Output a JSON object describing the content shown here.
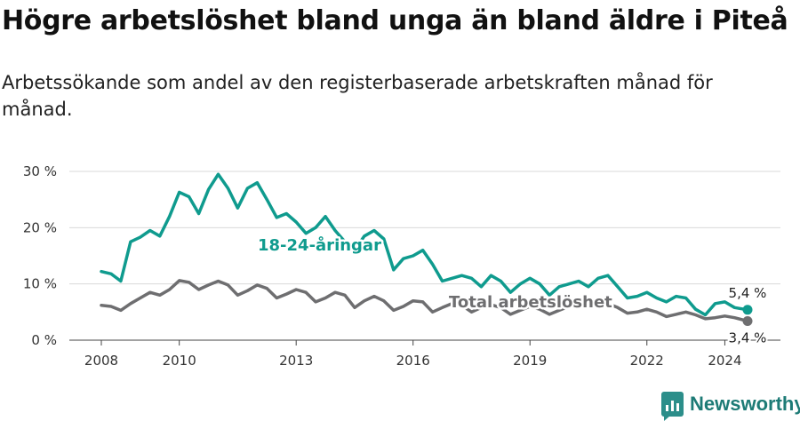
{
  "title": "Högre arbetslöshet bland unga än bland äldre i Piteå",
  "subtitle": "Arbetssökande som andel av den registerbaserade arbetskraften månad för månad.",
  "brand": {
    "name": "Newsworthy"
  },
  "colors": {
    "youth": "#0f9b8e",
    "total": "#6e6e70",
    "grid": "#d9d9d9"
  },
  "chart_data": {
    "type": "line",
    "title": "Högre arbetslöshet bland unga än bland äldre i Piteå",
    "subtitle": "Arbetssökande som andel av den registerbaserade arbetskraften månad för månad.",
    "xlabel": "",
    "ylabel": "",
    "x_ticks": [
      "2008",
      "2010",
      "2013",
      "2016",
      "2019",
      "2022",
      "2024"
    ],
    "y_ticks": [
      "0 %",
      "10 %",
      "20 %",
      "30 %"
    ],
    "ylim": [
      0,
      30
    ],
    "xlim": [
      "2008-01",
      "2024-08"
    ],
    "grid": "horizontal",
    "legend": "inline labels",
    "series": [
      {
        "name": "18-24-åringar",
        "end_label": "5,4 %",
        "points": [
          [
            "2008-01",
            12.2
          ],
          [
            "2008-04",
            11.8
          ],
          [
            "2008-07",
            10.5
          ],
          [
            "2008-10",
            17.5
          ],
          [
            "2009-01",
            18.3
          ],
          [
            "2009-04",
            19.5
          ],
          [
            "2009-07",
            18.5
          ],
          [
            "2009-10",
            22.0
          ],
          [
            "2010-01",
            26.3
          ],
          [
            "2010-04",
            25.5
          ],
          [
            "2010-07",
            22.5
          ],
          [
            "2010-10",
            26.8
          ],
          [
            "2011-01",
            29.5
          ],
          [
            "2011-04",
            27.0
          ],
          [
            "2011-07",
            23.5
          ],
          [
            "2011-10",
            27.0
          ],
          [
            "2012-01",
            28.0
          ],
          [
            "2012-04",
            25.0
          ],
          [
            "2012-07",
            21.8
          ],
          [
            "2012-10",
            22.5
          ],
          [
            "2013-01",
            21.0
          ],
          [
            "2013-04",
            19.0
          ],
          [
            "2013-07",
            20.0
          ],
          [
            "2013-10",
            22.0
          ],
          [
            "2014-01",
            19.5
          ],
          [
            "2014-04",
            17.5
          ],
          [
            "2014-07",
            16.0
          ],
          [
            "2014-10",
            18.5
          ],
          [
            "2015-01",
            19.5
          ],
          [
            "2015-04",
            18.0
          ],
          [
            "2015-07",
            12.5
          ],
          [
            "2015-10",
            14.5
          ],
          [
            "2016-01",
            15.0
          ],
          [
            "2016-04",
            16.0
          ],
          [
            "2016-07",
            13.5
          ],
          [
            "2016-10",
            10.5
          ],
          [
            "2017-01",
            11.0
          ],
          [
            "2017-04",
            11.5
          ],
          [
            "2017-07",
            11.0
          ],
          [
            "2017-10",
            9.5
          ],
          [
            "2018-01",
            11.5
          ],
          [
            "2018-04",
            10.5
          ],
          [
            "2018-07",
            8.5
          ],
          [
            "2018-10",
            10.0
          ],
          [
            "2019-01",
            11.0
          ],
          [
            "2019-04",
            10.0
          ],
          [
            "2019-07",
            8.0
          ],
          [
            "2019-10",
            9.5
          ],
          [
            "2020-01",
            10.0
          ],
          [
            "2020-04",
            10.5
          ],
          [
            "2020-07",
            9.5
          ],
          [
            "2020-10",
            11.0
          ],
          [
            "2021-01",
            11.5
          ],
          [
            "2021-04",
            9.5
          ],
          [
            "2021-07",
            7.5
          ],
          [
            "2021-10",
            7.8
          ],
          [
            "2022-01",
            8.5
          ],
          [
            "2022-04",
            7.5
          ],
          [
            "2022-07",
            6.8
          ],
          [
            "2022-10",
            7.8
          ],
          [
            "2023-01",
            7.5
          ],
          [
            "2023-04",
            5.5
          ],
          [
            "2023-07",
            4.5
          ],
          [
            "2023-10",
            6.5
          ],
          [
            "2024-01",
            6.8
          ],
          [
            "2024-04",
            5.8
          ],
          [
            "2024-08",
            5.4
          ]
        ]
      },
      {
        "name": "Total arbetslöshet",
        "end_label": "3,4 %",
        "points": [
          [
            "2008-01",
            6.2
          ],
          [
            "2008-04",
            6.0
          ],
          [
            "2008-07",
            5.3
          ],
          [
            "2008-10",
            6.5
          ],
          [
            "2009-01",
            7.5
          ],
          [
            "2009-04",
            8.5
          ],
          [
            "2009-07",
            8.0
          ],
          [
            "2009-10",
            9.0
          ],
          [
            "2010-01",
            10.6
          ],
          [
            "2010-04",
            10.3
          ],
          [
            "2010-07",
            9.0
          ],
          [
            "2010-10",
            9.8
          ],
          [
            "2011-01",
            10.5
          ],
          [
            "2011-04",
            9.8
          ],
          [
            "2011-07",
            8.0
          ],
          [
            "2011-10",
            8.8
          ],
          [
            "2012-01",
            9.8
          ],
          [
            "2012-04",
            9.2
          ],
          [
            "2012-07",
            7.5
          ],
          [
            "2012-10",
            8.2
          ],
          [
            "2013-01",
            9.0
          ],
          [
            "2013-04",
            8.5
          ],
          [
            "2013-07",
            6.8
          ],
          [
            "2013-10",
            7.5
          ],
          [
            "2014-01",
            8.5
          ],
          [
            "2014-04",
            8.0
          ],
          [
            "2014-07",
            5.8
          ],
          [
            "2014-10",
            7.0
          ],
          [
            "2015-01",
            7.8
          ],
          [
            "2015-04",
            7.0
          ],
          [
            "2015-07",
            5.3
          ],
          [
            "2015-10",
            6.0
          ],
          [
            "2016-01",
            7.0
          ],
          [
            "2016-04",
            6.8
          ],
          [
            "2016-07",
            5.0
          ],
          [
            "2016-10",
            5.8
          ],
          [
            "2017-01",
            6.5
          ],
          [
            "2017-04",
            6.2
          ],
          [
            "2017-07",
            5.0
          ],
          [
            "2017-10",
            5.8
          ],
          [
            "2018-01",
            6.3
          ],
          [
            "2018-04",
            5.8
          ],
          [
            "2018-07",
            4.6
          ],
          [
            "2018-10",
            5.3
          ],
          [
            "2019-01",
            6.0
          ],
          [
            "2019-04",
            5.5
          ],
          [
            "2019-07",
            4.6
          ],
          [
            "2019-10",
            5.3
          ],
          [
            "2020-01",
            6.0
          ],
          [
            "2020-04",
            6.5
          ],
          [
            "2020-07",
            6.0
          ],
          [
            "2020-10",
            6.2
          ],
          [
            "2021-01",
            6.5
          ],
          [
            "2021-04",
            5.8
          ],
          [
            "2021-07",
            4.8
          ],
          [
            "2021-10",
            5.0
          ],
          [
            "2022-01",
            5.5
          ],
          [
            "2022-04",
            5.0
          ],
          [
            "2022-07",
            4.2
          ],
          [
            "2022-10",
            4.6
          ],
          [
            "2023-01",
            5.0
          ],
          [
            "2023-04",
            4.5
          ],
          [
            "2023-07",
            3.8
          ],
          [
            "2023-10",
            4.0
          ],
          [
            "2024-01",
            4.3
          ],
          [
            "2024-04",
            4.0
          ],
          [
            "2024-08",
            3.4
          ]
        ]
      }
    ]
  }
}
